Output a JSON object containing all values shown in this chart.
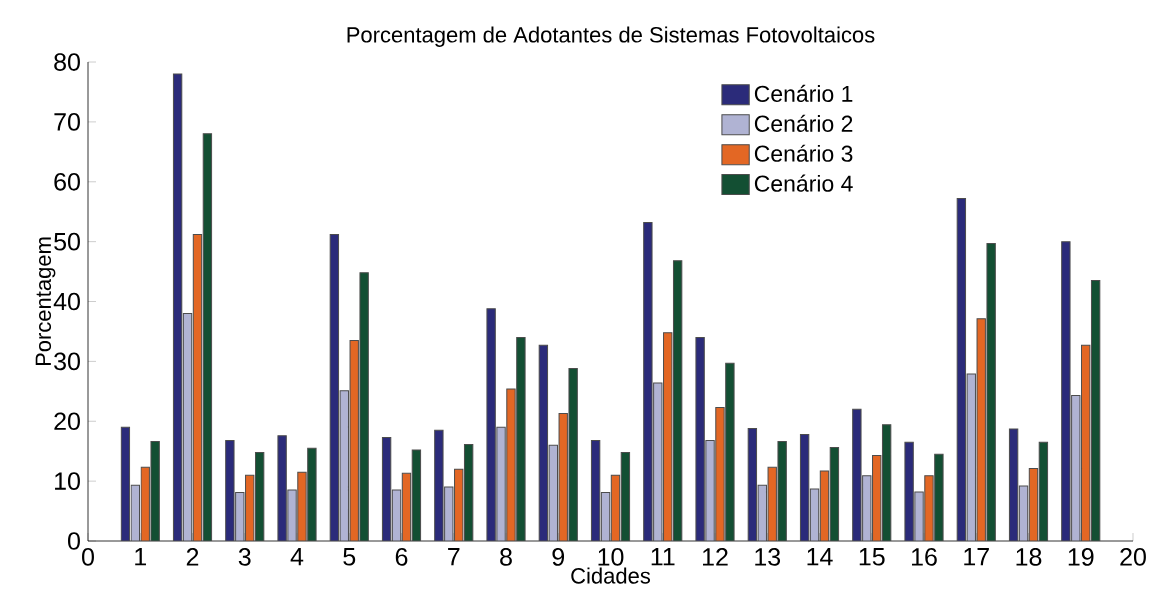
{
  "chart_data": {
    "type": "bar",
    "title": "Porcentagem de Adotantes de Sistemas Fotovoltaicos",
    "xlabel": "Cidades",
    "ylabel": "Porcentagem",
    "x": [
      1,
      2,
      3,
      4,
      5,
      6,
      7,
      8,
      9,
      10,
      11,
      12,
      13,
      14,
      15,
      16,
      17,
      18,
      19
    ],
    "series": [
      {
        "name": "Cenário 1",
        "color": "#2b2b7a",
        "values": [
          19,
          78,
          16.8,
          17.6,
          51.2,
          17.3,
          18.5,
          38.8,
          32.7,
          16.8,
          53.2,
          34,
          18.8,
          17.8,
          22,
          16.5,
          57.2,
          18.7,
          50
        ]
      },
      {
        "name": "Cenário 2",
        "color": "#b0b3d3",
        "values": [
          9.3,
          38,
          8.1,
          8.5,
          25.1,
          8.5,
          9,
          19,
          16,
          8.1,
          26.4,
          16.8,
          9.3,
          8.7,
          10.9,
          8.2,
          27.9,
          9.2,
          24.3
        ]
      },
      {
        "name": "Cenário 3",
        "color": "#e36724",
        "values": [
          12.3,
          51.2,
          11,
          11.5,
          33.5,
          11.3,
          12,
          25.4,
          21.3,
          11,
          34.8,
          22.3,
          12.3,
          11.7,
          14.3,
          10.9,
          37.1,
          12.1,
          32.7
        ]
      },
      {
        "name": "Cenário 4",
        "color": "#134f33",
        "values": [
          16.6,
          68,
          14.8,
          15.5,
          44.8,
          15.2,
          16.1,
          34,
          28.8,
          14.8,
          46.8,
          29.7,
          16.6,
          15.6,
          19.4,
          14.5,
          49.7,
          16.5,
          43.5
        ]
      }
    ],
    "xlim": [
      0,
      20
    ],
    "xticks": [
      0,
      1,
      2,
      3,
      4,
      5,
      6,
      7,
      8,
      9,
      10,
      11,
      12,
      13,
      14,
      15,
      16,
      17,
      18,
      19,
      20
    ],
    "ylim": [
      0,
      80
    ],
    "yticks": [
      0,
      10,
      20,
      30,
      40,
      50,
      60,
      70,
      80
    ],
    "grid": false,
    "legend": "top right"
  }
}
